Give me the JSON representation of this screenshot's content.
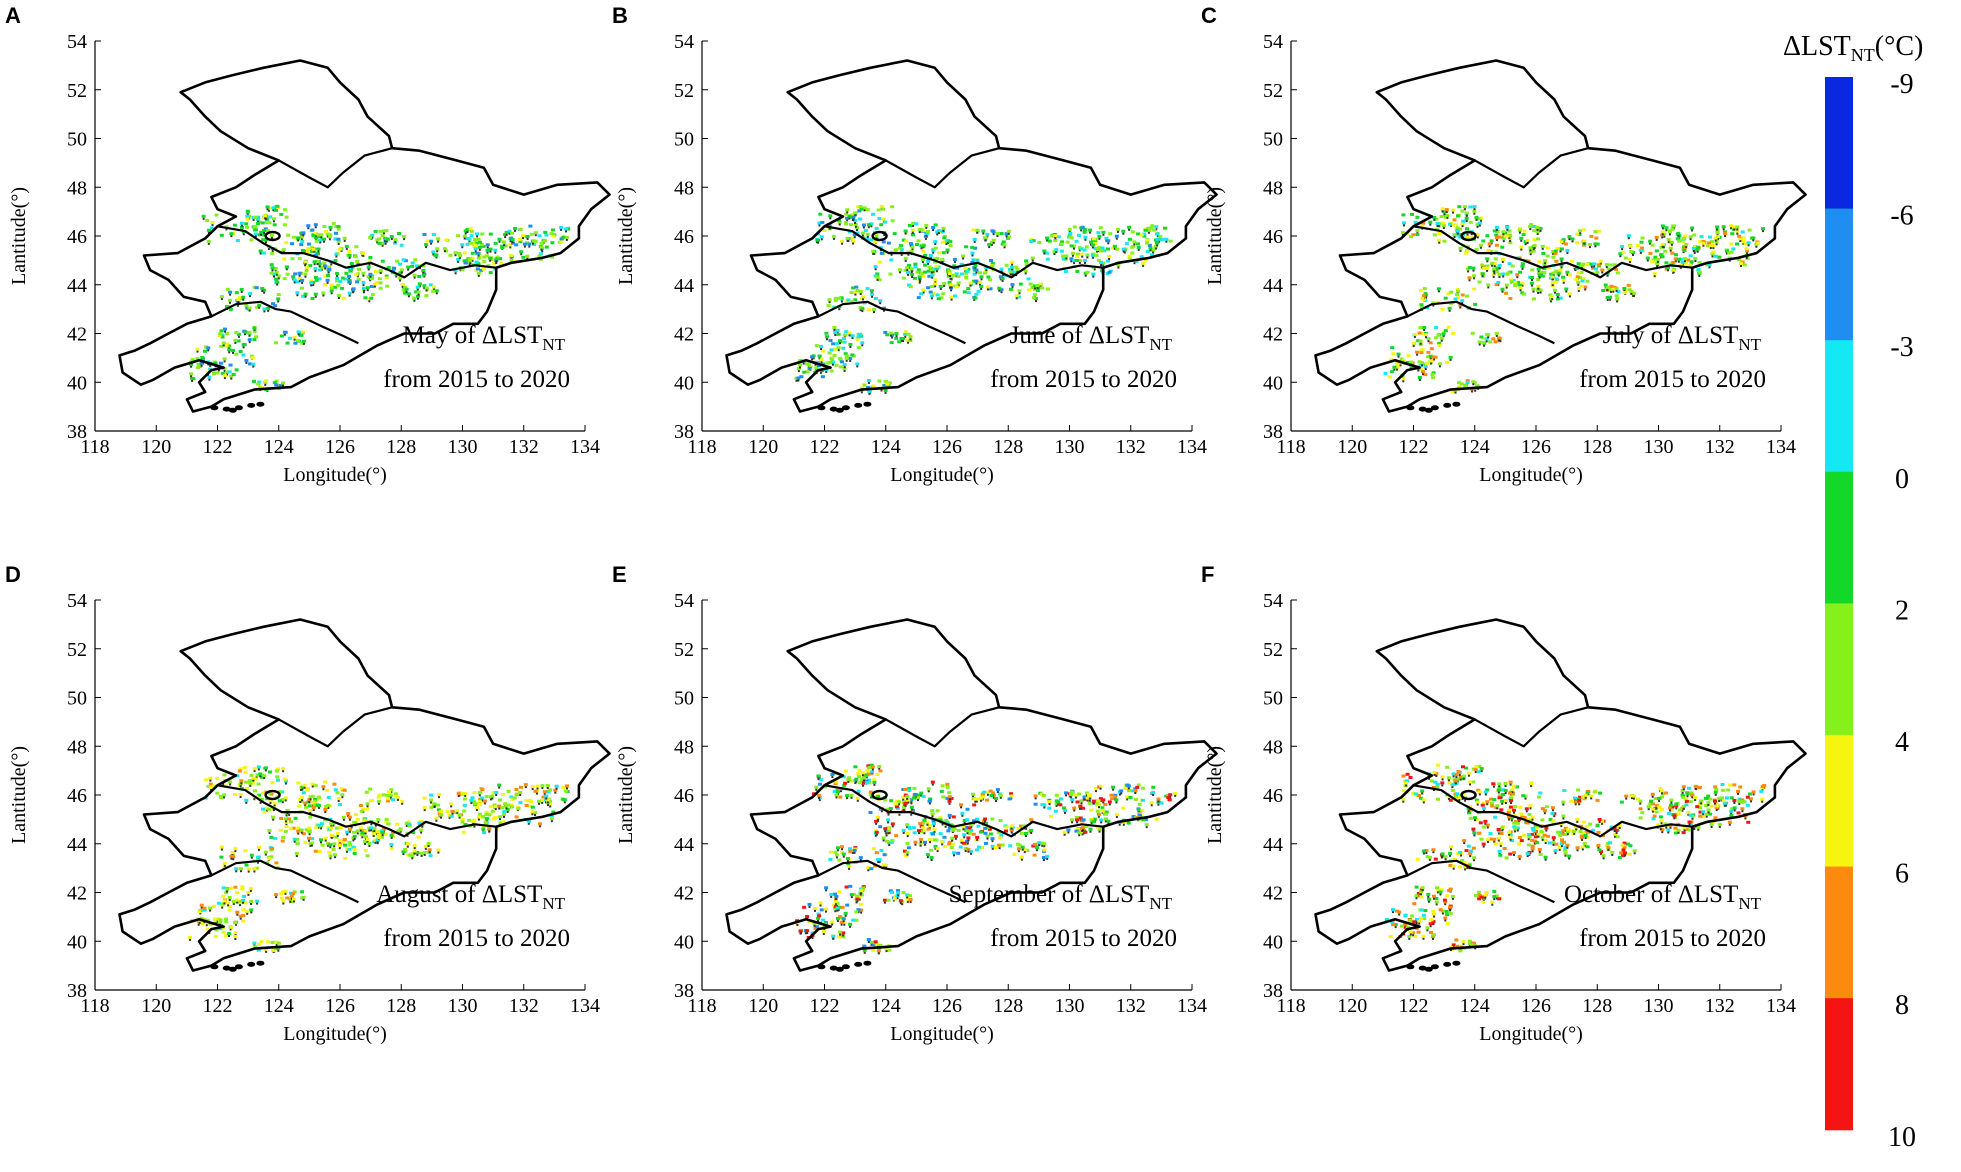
{
  "figure": {
    "panels": [
      {
        "letter": "A",
        "caption_month": "May of ΔLST",
        "caption_sub": "NT",
        "caption_years": "from 2015 to 2020"
      },
      {
        "letter": "B",
        "caption_month": "June of ΔLST",
        "caption_sub": "NT",
        "caption_years": "from 2015 to 2020"
      },
      {
        "letter": "C",
        "caption_month": "July of ΔLST",
        "caption_sub": "NT",
        "caption_years": "from 2015 to 2020"
      },
      {
        "letter": "D",
        "caption_month": "August of ΔLST",
        "caption_sub": "NT",
        "caption_years": "from 2015 to 2020"
      },
      {
        "letter": "E",
        "caption_month": "September of ΔLST",
        "caption_sub": "NT",
        "caption_years": "from 2015 to 2020"
      },
      {
        "letter": "F",
        "caption_month": "October of ΔLST",
        "caption_sub": "NT",
        "caption_years": "from 2015 to 2020"
      }
    ],
    "x_axis": {
      "label": "Longitude(°)",
      "ticks": [
        "118",
        "120",
        "122",
        "124",
        "126",
        "128",
        "130",
        "132",
        "134"
      ],
      "range": [
        118,
        134
      ]
    },
    "y_axis": {
      "label": "Lantitude(°)",
      "ticks": [
        "38",
        "40",
        "42",
        "44",
        "46",
        "48",
        "50",
        "52",
        "54"
      ],
      "range": [
        38,
        54
      ]
    },
    "colorbar": {
      "title_main": "ΔLST",
      "title_sub": "NT",
      "title_unit": "(°C)",
      "labels": [
        "-9",
        "-6",
        "-3",
        "0",
        "2",
        "4",
        "6",
        "8",
        "10"
      ],
      "colors": [
        "#0a28e0",
        "#1f8ef0",
        "#14e8f2",
        "#12d82a",
        "#86f01a",
        "#f5f50f",
        "#fb8a0f",
        "#f51414"
      ]
    }
  }
}
